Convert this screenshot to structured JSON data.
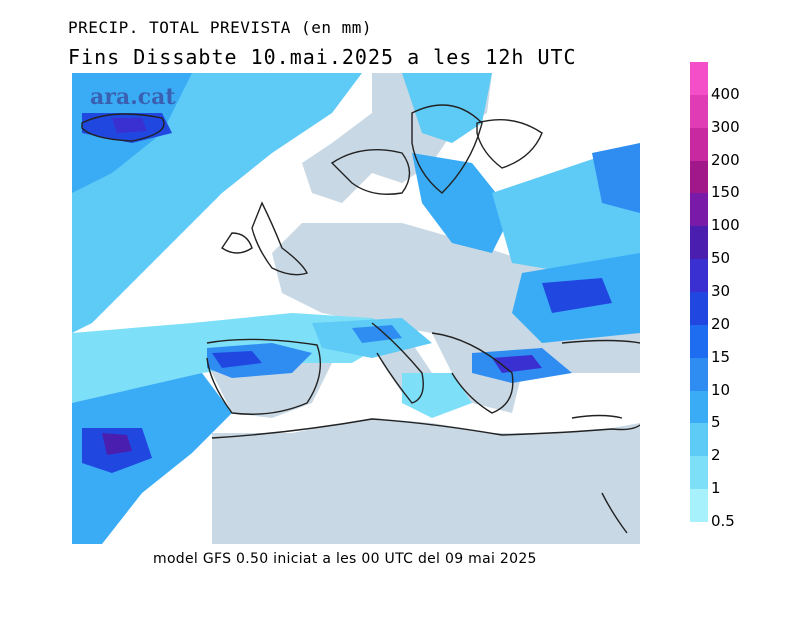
{
  "header": {
    "line1": "PRECIP. TOTAL PREVISTA (en mm)",
    "line2": "Fins Dissabte  10.mai.2025 a les 12h UTC"
  },
  "watermark": "ara.cat",
  "footer": "model GFS 0.50 iniciat a les 00 UTC del 09 mai 2025",
  "legend": {
    "levels": [
      "400",
      "300",
      "200",
      "150",
      "100",
      "50",
      "30",
      "20",
      "15",
      "10",
      "5",
      "2",
      "1",
      "0.5"
    ],
    "colors": [
      "#f44fc8",
      "#e03cb6",
      "#c828a0",
      "#a0188a",
      "#7a1aa8",
      "#4a1fb0",
      "#3a2fd0",
      "#2048e0",
      "#1e6cf0",
      "#2f8df2",
      "#3aacf5",
      "#5ecaf6",
      "#7edff8",
      "#a6f1fb"
    ]
  },
  "map": {
    "land_color": "#c8d8e4",
    "background": "#ffffff"
  }
}
